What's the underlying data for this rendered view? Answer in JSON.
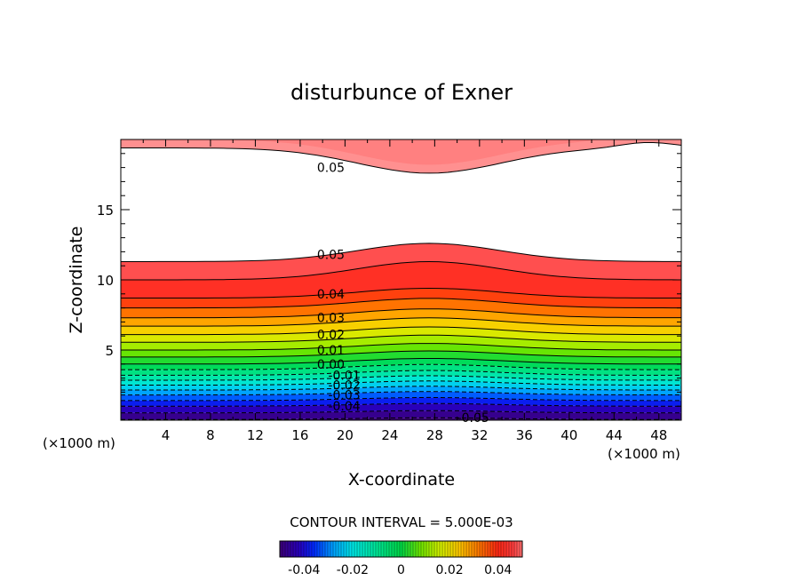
{
  "chart_data": {
    "type": "contour",
    "title": "disturbunce of Exner",
    "xlabel": "X-coordinate",
    "ylabel": "Z-coordinate",
    "x_unit_left": "(×1000 m)",
    "x_unit_right": "(×1000 m)",
    "xlim": [
      0,
      50
    ],
    "ylim": [
      0,
      20
    ],
    "x_ticks": [
      4,
      8,
      12,
      16,
      20,
      24,
      28,
      32,
      36,
      40,
      44,
      48
    ],
    "y_ticks": [
      5,
      10,
      15
    ],
    "contour_interval_text": "CONTOUR INTERVAL = 5.000E-03",
    "contour_interval": 0.005,
    "levels_range": [
      -0.05,
      0.05
    ],
    "contour_labels": [
      {
        "text": "0.05",
        "x": 17.5,
        "z": 18.0
      },
      {
        "text": "0.05",
        "x": 17.5,
        "z": 11.8
      },
      {
        "text": "0.04",
        "x": 17.5,
        "z": 9.0
      },
      {
        "text": "0.03",
        "x": 17.5,
        "z": 7.3
      },
      {
        "text": "0.02",
        "x": 17.5,
        "z": 6.1
      },
      {
        "text": "0.01",
        "x": 17.5,
        "z": 5.0
      },
      {
        "text": "0.00",
        "x": 17.5,
        "z": 4.0
      },
      {
        "text": "-0.01",
        "x": 18.5,
        "z": 3.2
      },
      {
        "text": "-0.02",
        "x": 18.5,
        "z": 2.5
      },
      {
        "text": "-0.03",
        "x": 18.5,
        "z": 1.8
      },
      {
        "text": "-0.04",
        "x": 18.5,
        "z": 1.0
      },
      {
        "text": "-0.05",
        "x": 30.0,
        "z": 0.2
      }
    ],
    "colorbar": {
      "ticks": [
        -0.04,
        -0.02,
        0,
        0.02,
        0.04
      ],
      "tick_labels": [
        "-0.04",
        "-0.02",
        "0",
        "0.02",
        "0.04"
      ],
      "range": [
        -0.05,
        0.05
      ]
    },
    "colors": {
      "neg_end": "#3a0078",
      "zero": "#00d84a",
      "pos_end": "#ff2020",
      "top_band": "#ff9090"
    }
  }
}
